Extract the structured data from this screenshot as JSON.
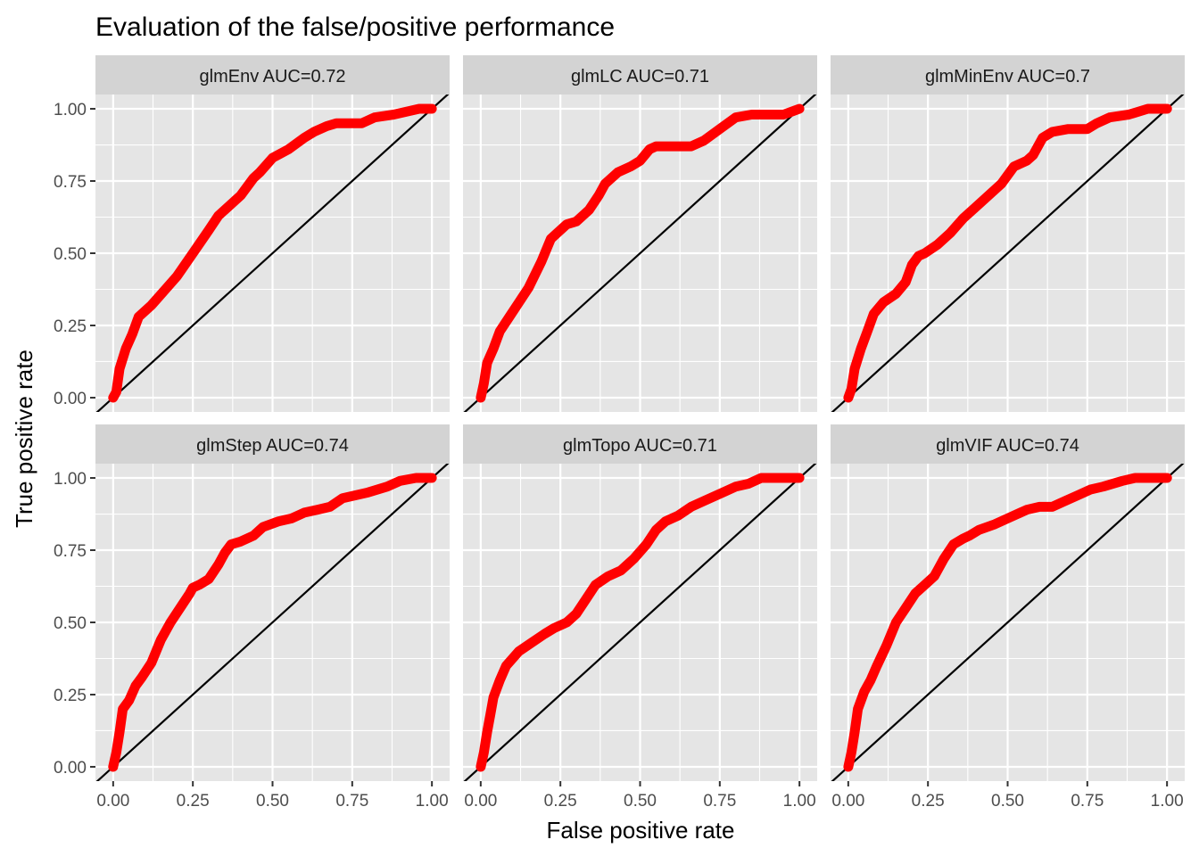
{
  "title": "Evaluation of the false/positive performance",
  "xlabel": "False positive rate",
  "ylabel": "True positive rate",
  "colors": {
    "curve": "#ff0000",
    "diagonal": "#000000",
    "panel_bg": "#e5e5e5",
    "strip_bg": "#d3d3d3",
    "grid": "#ffffff"
  },
  "chart_data": {
    "type": "line",
    "facet_layout": "2x3",
    "xlim": [
      0,
      1
    ],
    "ylim": [
      0,
      1
    ],
    "x_ticks": [
      "0.00",
      "0.25",
      "0.50",
      "0.75",
      "1.00"
    ],
    "y_ticks": [
      "0.00",
      "0.25",
      "0.50",
      "0.75",
      "1.00"
    ],
    "grid": true,
    "legend": "none",
    "reference_line": "y = x",
    "panels": [
      {
        "label": "glmEnv AUC=0.72",
        "x": [
          0.0,
          0.01,
          0.02,
          0.04,
          0.06,
          0.08,
          0.12,
          0.16,
          0.2,
          0.25,
          0.3,
          0.33,
          0.37,
          0.4,
          0.44,
          0.46,
          0.5,
          0.55,
          0.6,
          0.63,
          0.67,
          0.7,
          0.78,
          0.82,
          0.88,
          0.92,
          0.96,
          1.0
        ],
        "y": [
          0.0,
          0.02,
          0.1,
          0.17,
          0.22,
          0.28,
          0.32,
          0.37,
          0.42,
          0.5,
          0.58,
          0.63,
          0.67,
          0.7,
          0.76,
          0.78,
          0.83,
          0.86,
          0.9,
          0.92,
          0.94,
          0.95,
          0.95,
          0.97,
          0.98,
          0.99,
          1.0,
          1.0
        ]
      },
      {
        "label": "glmLC AUC=0.71",
        "x": [
          0.0,
          0.01,
          0.02,
          0.04,
          0.06,
          0.09,
          0.12,
          0.15,
          0.19,
          0.22,
          0.24,
          0.27,
          0.3,
          0.34,
          0.37,
          0.39,
          0.43,
          0.47,
          0.5,
          0.53,
          0.55,
          0.6,
          0.66,
          0.7,
          0.75,
          0.8,
          0.85,
          0.9,
          0.95,
          1.0
        ],
        "y": [
          0.0,
          0.05,
          0.12,
          0.17,
          0.23,
          0.28,
          0.33,
          0.38,
          0.47,
          0.55,
          0.57,
          0.6,
          0.61,
          0.65,
          0.7,
          0.74,
          0.78,
          0.8,
          0.82,
          0.86,
          0.87,
          0.87,
          0.87,
          0.89,
          0.93,
          0.97,
          0.98,
          0.98,
          0.98,
          1.0
        ]
      },
      {
        "label": "glmMinEnv AUC=0.7",
        "x": [
          0.0,
          0.01,
          0.02,
          0.04,
          0.06,
          0.08,
          0.11,
          0.15,
          0.18,
          0.2,
          0.22,
          0.24,
          0.28,
          0.32,
          0.36,
          0.4,
          0.44,
          0.48,
          0.52,
          0.56,
          0.58,
          0.61,
          0.64,
          0.69,
          0.75,
          0.78,
          0.82,
          0.88,
          0.94,
          1.0
        ],
        "y": [
          0.0,
          0.03,
          0.1,
          0.17,
          0.23,
          0.29,
          0.33,
          0.36,
          0.4,
          0.46,
          0.49,
          0.5,
          0.53,
          0.57,
          0.62,
          0.66,
          0.7,
          0.74,
          0.8,
          0.82,
          0.84,
          0.9,
          0.92,
          0.93,
          0.93,
          0.95,
          0.97,
          0.98,
          1.0,
          1.0
        ]
      },
      {
        "label": "glmStep AUC=0.74",
        "x": [
          0.0,
          0.01,
          0.02,
          0.03,
          0.05,
          0.07,
          0.09,
          0.12,
          0.15,
          0.18,
          0.21,
          0.24,
          0.25,
          0.27,
          0.3,
          0.33,
          0.35,
          0.37,
          0.4,
          0.44,
          0.47,
          0.52,
          0.56,
          0.6,
          0.64,
          0.68,
          0.72,
          0.8,
          0.86,
          0.9,
          0.95,
          1.0
        ],
        "y": [
          0.0,
          0.05,
          0.12,
          0.2,
          0.23,
          0.28,
          0.31,
          0.36,
          0.44,
          0.5,
          0.55,
          0.6,
          0.62,
          0.63,
          0.65,
          0.7,
          0.74,
          0.77,
          0.78,
          0.8,
          0.83,
          0.85,
          0.86,
          0.88,
          0.89,
          0.9,
          0.93,
          0.95,
          0.97,
          0.99,
          1.0,
          1.0
        ]
      },
      {
        "label": "glmTopo AUC=0.71",
        "x": [
          0.0,
          0.01,
          0.02,
          0.03,
          0.04,
          0.06,
          0.08,
          0.12,
          0.16,
          0.2,
          0.23,
          0.27,
          0.3,
          0.33,
          0.36,
          0.4,
          0.44,
          0.48,
          0.52,
          0.55,
          0.58,
          0.62,
          0.66,
          0.7,
          0.76,
          0.8,
          0.84,
          0.88,
          0.93,
          1.0
        ],
        "y": [
          0.0,
          0.05,
          0.12,
          0.18,
          0.24,
          0.3,
          0.35,
          0.4,
          0.43,
          0.46,
          0.48,
          0.5,
          0.53,
          0.58,
          0.63,
          0.66,
          0.68,
          0.72,
          0.77,
          0.82,
          0.85,
          0.87,
          0.9,
          0.92,
          0.95,
          0.97,
          0.98,
          1.0,
          1.0,
          1.0
        ]
      },
      {
        "label": "glmVIF AUC=0.74",
        "x": [
          0.0,
          0.01,
          0.02,
          0.03,
          0.05,
          0.07,
          0.09,
          0.12,
          0.15,
          0.18,
          0.21,
          0.24,
          0.27,
          0.3,
          0.33,
          0.36,
          0.38,
          0.41,
          0.46,
          0.5,
          0.56,
          0.6,
          0.64,
          0.68,
          0.72,
          0.76,
          0.8,
          0.86,
          0.9,
          0.95,
          1.0
        ],
        "y": [
          0.0,
          0.05,
          0.12,
          0.2,
          0.26,
          0.3,
          0.35,
          0.42,
          0.5,
          0.55,
          0.6,
          0.63,
          0.66,
          0.72,
          0.77,
          0.79,
          0.8,
          0.82,
          0.84,
          0.86,
          0.89,
          0.9,
          0.9,
          0.92,
          0.94,
          0.96,
          0.97,
          0.99,
          1.0,
          1.0,
          1.0
        ]
      }
    ]
  }
}
